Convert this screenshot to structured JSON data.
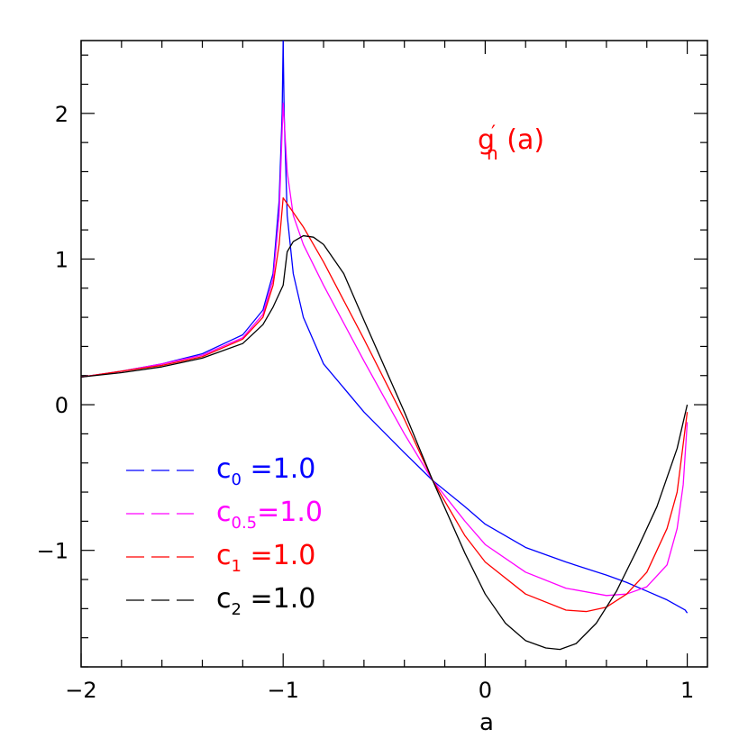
{
  "chart_data": {
    "type": "line",
    "title": "",
    "xlabel": "a",
    "ylabel": "",
    "xlim": [
      -2,
      1.1
    ],
    "ylim": [
      -1.8,
      2.5
    ],
    "x_ticks": [
      -2,
      -1,
      0,
      1
    ],
    "y_ticks": [
      -1,
      0,
      1,
      2
    ],
    "x_tick_labels": [
      "−2",
      "−1",
      "0",
      "1"
    ],
    "y_tick_labels": [
      "−1",
      "0",
      "1",
      "2"
    ],
    "grid": false,
    "legend_position": "bottom-left",
    "annotation": {
      "base": "g",
      "prime": "′",
      "sub": "n",
      "arg": " (a)",
      "color": "#ff0000"
    },
    "series": [
      {
        "name": "c₀ =1.0",
        "label_base": "c",
        "label_sub": "0",
        "label_value": " =1.0",
        "color": "#0000ff",
        "points": [
          [
            -2,
            0.19
          ],
          [
            -1.8,
            0.23
          ],
          [
            -1.6,
            0.28
          ],
          [
            -1.4,
            0.35
          ],
          [
            -1.2,
            0.48
          ],
          [
            -1.1,
            0.65
          ],
          [
            -1.05,
            0.9
          ],
          [
            -1.02,
            1.4
          ],
          [
            -1.005,
            2.0
          ],
          [
            -1.0,
            2.5
          ],
          [
            -0.995,
            2.0
          ],
          [
            -0.98,
            1.3
          ],
          [
            -0.95,
            0.9
          ],
          [
            -0.9,
            0.6
          ],
          [
            -0.8,
            0.28
          ],
          [
            -0.6,
            -0.05
          ],
          [
            -0.4,
            -0.33
          ],
          [
            -0.26,
            -0.52
          ],
          [
            -0.1,
            -0.7
          ],
          [
            0.0,
            -0.82
          ],
          [
            0.2,
            -0.98
          ],
          [
            0.4,
            -1.08
          ],
          [
            0.6,
            -1.17
          ],
          [
            0.7,
            -1.22
          ],
          [
            0.8,
            -1.28
          ],
          [
            0.9,
            -1.34
          ],
          [
            0.99,
            -1.41
          ],
          [
            1.0,
            -1.43
          ]
        ]
      },
      {
        "name": "c₀.₅=1.0",
        "label_base": "c",
        "label_sub": "0.5",
        "label_value": "=1.0",
        "color": "#ff00ff",
        "points": [
          [
            -2,
            0.19
          ],
          [
            -1.8,
            0.23
          ],
          [
            -1.6,
            0.28
          ],
          [
            -1.4,
            0.34
          ],
          [
            -1.2,
            0.46
          ],
          [
            -1.1,
            0.62
          ],
          [
            -1.05,
            0.86
          ],
          [
            -1.02,
            1.3
          ],
          [
            -1.0,
            2.07
          ],
          [
            -0.98,
            1.6
          ],
          [
            -0.95,
            1.3
          ],
          [
            -0.9,
            1.1
          ],
          [
            -0.8,
            0.82
          ],
          [
            -0.6,
            0.3
          ],
          [
            -0.4,
            -0.2
          ],
          [
            -0.26,
            -0.52
          ],
          [
            -0.1,
            -0.8
          ],
          [
            0.0,
            -0.96
          ],
          [
            0.2,
            -1.15
          ],
          [
            0.4,
            -1.26
          ],
          [
            0.6,
            -1.31
          ],
          [
            0.7,
            -1.3
          ],
          [
            0.8,
            -1.25
          ],
          [
            0.9,
            -1.1
          ],
          [
            0.95,
            -0.85
          ],
          [
            0.98,
            -0.55
          ],
          [
            1.0,
            -0.12
          ]
        ]
      },
      {
        "name": "c₁ =1.0",
        "label_base": "c",
        "label_sub": "1",
        "label_value": " =1.0",
        "color": "#ff0000",
        "points": [
          [
            -2,
            0.19
          ],
          [
            -1.8,
            0.23
          ],
          [
            -1.6,
            0.27
          ],
          [
            -1.4,
            0.33
          ],
          [
            -1.2,
            0.45
          ],
          [
            -1.1,
            0.6
          ],
          [
            -1.05,
            0.82
          ],
          [
            -1.02,
            1.1
          ],
          [
            -1.0,
            1.42
          ],
          [
            -0.97,
            1.36
          ],
          [
            -0.9,
            1.22
          ],
          [
            -0.8,
            0.98
          ],
          [
            -0.6,
            0.45
          ],
          [
            -0.4,
            -0.1
          ],
          [
            -0.26,
            -0.52
          ],
          [
            -0.1,
            -0.9
          ],
          [
            0.0,
            -1.08
          ],
          [
            0.2,
            -1.3
          ],
          [
            0.4,
            -1.41
          ],
          [
            0.5,
            -1.42
          ],
          [
            0.6,
            -1.39
          ],
          [
            0.7,
            -1.3
          ],
          [
            0.8,
            -1.15
          ],
          [
            0.9,
            -0.85
          ],
          [
            0.95,
            -0.6
          ],
          [
            1.0,
            -0.05
          ]
        ]
      },
      {
        "name": "c₂ =1.0",
        "label_base": "c",
        "label_sub": "2",
        "label_value": " =1.0",
        "color": "#000000",
        "points": [
          [
            -2,
            0.19
          ],
          [
            -1.8,
            0.22
          ],
          [
            -1.6,
            0.26
          ],
          [
            -1.4,
            0.32
          ],
          [
            -1.2,
            0.42
          ],
          [
            -1.1,
            0.55
          ],
          [
            -1.05,
            0.67
          ],
          [
            -1.0,
            0.82
          ],
          [
            -0.98,
            1.05
          ],
          [
            -0.95,
            1.12
          ],
          [
            -0.9,
            1.16
          ],
          [
            -0.85,
            1.15
          ],
          [
            -0.8,
            1.1
          ],
          [
            -0.7,
            0.9
          ],
          [
            -0.6,
            0.58
          ],
          [
            -0.4,
            -0.05
          ],
          [
            -0.26,
            -0.52
          ],
          [
            -0.1,
            -1.02
          ],
          [
            0.0,
            -1.3
          ],
          [
            0.1,
            -1.5
          ],
          [
            0.2,
            -1.62
          ],
          [
            0.3,
            -1.67
          ],
          [
            0.37,
            -1.68
          ],
          [
            0.45,
            -1.64
          ],
          [
            0.55,
            -1.5
          ],
          [
            0.65,
            -1.28
          ],
          [
            0.75,
            -1.0
          ],
          [
            0.85,
            -0.7
          ],
          [
            0.95,
            -0.3
          ],
          [
            1.0,
            0.0
          ]
        ]
      }
    ]
  }
}
